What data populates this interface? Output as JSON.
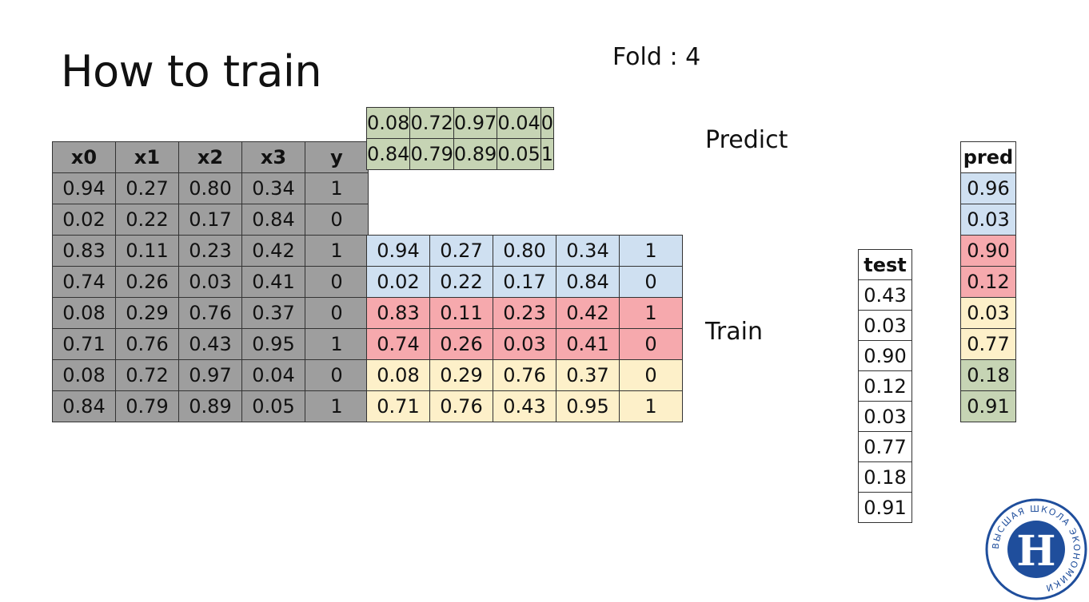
{
  "title": "How to train",
  "fold_label": "Fold : 4",
  "predict_label": "Predict",
  "train_label": "Train",
  "left_table": {
    "headers": [
      "x0",
      "x1",
      "x2",
      "x3",
      "y"
    ],
    "rows": [
      [
        "0.94",
        "0.27",
        "0.80",
        "0.34",
        "1"
      ],
      [
        "0.02",
        "0.22",
        "0.17",
        "0.84",
        "0"
      ],
      [
        "0.83",
        "0.11",
        "0.23",
        "0.42",
        "1"
      ],
      [
        "0.74",
        "0.26",
        "0.03",
        "0.41",
        "0"
      ],
      [
        "0.08",
        "0.29",
        "0.76",
        "0.37",
        "0"
      ],
      [
        "0.71",
        "0.76",
        "0.43",
        "0.95",
        "1"
      ],
      [
        "0.08",
        "0.72",
        "0.97",
        "0.04",
        "0"
      ],
      [
        "0.84",
        "0.79",
        "0.89",
        "0.05",
        "1"
      ]
    ]
  },
  "predict_table": {
    "rows": [
      [
        "0.08",
        "0.72",
        "0.97",
        "0.04",
        "0"
      ],
      [
        "0.84",
        "0.79",
        "0.89",
        "0.05",
        "1"
      ]
    ]
  },
  "train_table": {
    "rows": [
      [
        "0.94",
        "0.27",
        "0.80",
        "0.34",
        "1"
      ],
      [
        "0.02",
        "0.22",
        "0.17",
        "0.84",
        "0"
      ],
      [
        "0.83",
        "0.11",
        "0.23",
        "0.42",
        "1"
      ],
      [
        "0.74",
        "0.26",
        "0.03",
        "0.41",
        "0"
      ],
      [
        "0.08",
        "0.29",
        "0.76",
        "0.37",
        "0"
      ],
      [
        "0.71",
        "0.76",
        "0.43",
        "0.95",
        "1"
      ]
    ]
  },
  "test_table": {
    "header": "test",
    "values": [
      "0.43",
      "0.03",
      "0.90",
      "0.12",
      "0.03",
      "0.77",
      "0.18",
      "0.91"
    ]
  },
  "pred_table": {
    "header": "pred",
    "values": [
      "0.96",
      "0.03",
      "0.90",
      "0.12",
      "0.03",
      "0.77",
      "0.18",
      "0.91"
    ]
  },
  "logo": {
    "ring_text": "ВЫСШАЯ ШКОЛА ЭКОНОМИКИ",
    "monogram": "Н"
  },
  "colors": {
    "gray": "#9e9e9e",
    "green": "#c6d4b4",
    "blue": "#cfe0f1",
    "red": "#f6a9ad",
    "yellow": "#fdf0c9",
    "logo_blue": "#1f4e9c"
  }
}
